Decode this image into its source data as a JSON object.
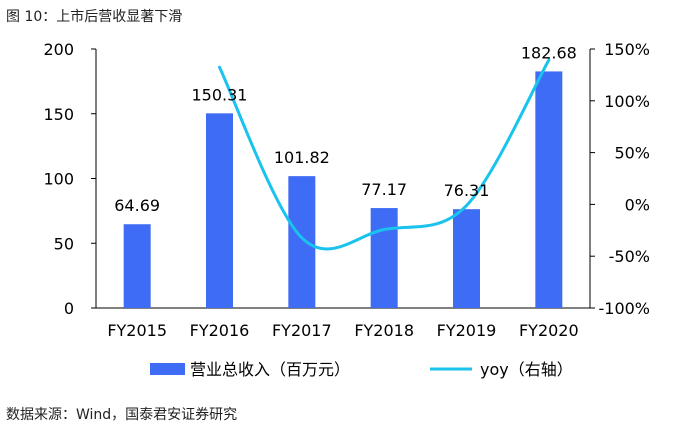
{
  "header": {
    "title": "图 10：上市后营收显著下滑"
  },
  "footer": {
    "source": "数据来源：Wind，国泰君安证券研究"
  },
  "colors": {
    "bar": "#3F6CF4",
    "line": "#19C3EE",
    "axis": "#000000"
  },
  "chart_data": {
    "type": "bar",
    "categories": [
      "FY2015",
      "FY2016",
      "FY2017",
      "FY2018",
      "FY2019",
      "FY2020"
    ],
    "series": [
      {
        "name": "营业总收入（百万元）",
        "type": "bar",
        "axis": "left",
        "values": [
          64.69,
          150.31,
          101.82,
          77.17,
          76.31,
          182.68
        ],
        "labels": [
          "64.69",
          "150.31",
          "101.82",
          "77.17",
          "76.31",
          "182.68"
        ]
      },
      {
        "name": "yoy（右轴）",
        "type": "line",
        "axis": "right",
        "values": [
          null,
          132.4,
          -32.3,
          -24.2,
          -1.1,
          139.4
        ]
      }
    ],
    "ylim_left": [
      0,
      200
    ],
    "yticks_left": [
      "0",
      "50",
      "100",
      "150",
      "200"
    ],
    "ylim_right": [
      -100,
      150
    ],
    "yticks_right": [
      "-100%",
      "-50%",
      "0%",
      "50%",
      "100%",
      "150%"
    ],
    "grid": false,
    "legend_position": "bottom"
  }
}
